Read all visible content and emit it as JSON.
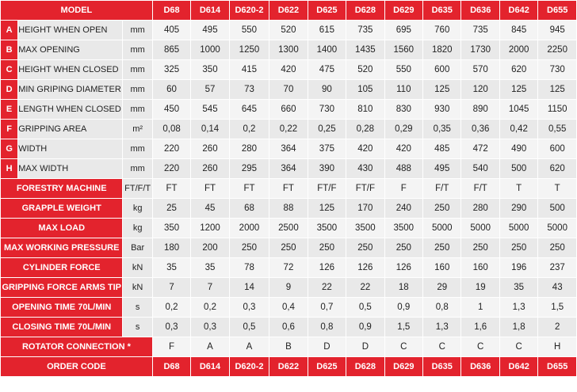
{
  "header": {
    "title": "MODEL",
    "models": [
      "D68",
      "D614",
      "D620-2",
      "D622",
      "D625",
      "D628",
      "D629",
      "D635",
      "D636",
      "D642",
      "D655"
    ]
  },
  "dimensions": [
    {
      "letter": "A",
      "label": "HEIGHT WHEN OPEN",
      "unit": "mm",
      "values": [
        "405",
        "495",
        "550",
        "520",
        "615",
        "735",
        "695",
        "760",
        "735",
        "845",
        "945"
      ]
    },
    {
      "letter": "B",
      "label": "MAX OPENING",
      "unit": "mm",
      "values": [
        "865",
        "1000",
        "1250",
        "1300",
        "1400",
        "1435",
        "1560",
        "1820",
        "1730",
        "2000",
        "2250"
      ]
    },
    {
      "letter": "C",
      "label": "HEIGHT WHEN CLOSED",
      "unit": "mm",
      "values": [
        "325",
        "350",
        "415",
        "420",
        "475",
        "520",
        "550",
        "600",
        "570",
        "620",
        "730"
      ]
    },
    {
      "letter": "D",
      "label": "MIN GRIPING DIAMETER",
      "unit": "mm",
      "values": [
        "60",
        "57",
        "73",
        "70",
        "90",
        "105",
        "110",
        "125",
        "120",
        "125",
        "125"
      ]
    },
    {
      "letter": "E",
      "label": "LENGTH WHEN CLOSED",
      "unit": "mm",
      "values": [
        "450",
        "545",
        "645",
        "660",
        "730",
        "810",
        "830",
        "930",
        "890",
        "1045",
        "1150"
      ]
    },
    {
      "letter": "F",
      "label": "GRIPPING AREA",
      "unit": "m²",
      "values": [
        "0,08",
        "0,14",
        "0,2",
        "0,22",
        "0,25",
        "0,28",
        "0,29",
        "0,35",
        "0,36",
        "0,42",
        "0,55"
      ]
    },
    {
      "letter": "G",
      "label": "WIDTH",
      "unit": "mm",
      "values": [
        "220",
        "260",
        "280",
        "364",
        "375",
        "420",
        "420",
        "485",
        "472",
        "490",
        "600"
      ]
    },
    {
      "letter": "H",
      "label": "MAX WIDTH",
      "unit": "mm",
      "values": [
        "220",
        "260",
        "295",
        "364",
        "390",
        "430",
        "488",
        "495",
        "540",
        "500",
        "620"
      ]
    }
  ],
  "specs": [
    {
      "label": "FORESTRY MACHINE",
      "unit": "FT/F/T",
      "values": [
        "FT",
        "FT",
        "FT",
        "FT",
        "FT/F",
        "FT/F",
        "F",
        "F/T",
        "F/T",
        "T",
        "T"
      ]
    },
    {
      "label": "GRAPPLE WEIGHT",
      "unit": "kg",
      "values": [
        "25",
        "45",
        "68",
        "88",
        "125",
        "170",
        "240",
        "250",
        "280",
        "290",
        "500"
      ]
    },
    {
      "label": "MAX LOAD",
      "unit": "kg",
      "values": [
        "350",
        "1200",
        "2000",
        "2500",
        "3500",
        "3500",
        "3500",
        "5000",
        "5000",
        "5000",
        "5000"
      ]
    },
    {
      "label": "MAX WORKING PRESSURE",
      "unit": "Bar",
      "values": [
        "180",
        "200",
        "250",
        "250",
        "250",
        "250",
        "250",
        "250",
        "250",
        "250",
        "250"
      ]
    },
    {
      "label": "CYLINDER FORCE",
      "unit": "kN",
      "values": [
        "35",
        "35",
        "78",
        "72",
        "126",
        "126",
        "126",
        "160",
        "160",
        "196",
        "237"
      ]
    },
    {
      "label": "GRIPPING FORCE ARMS TIP",
      "unit": "kN",
      "values": [
        "7",
        "7",
        "14",
        "9",
        "22",
        "22",
        "18",
        "29",
        "19",
        "35",
        "43"
      ]
    },
    {
      "label": "OPENING TIME 70L/MIN",
      "unit": "s",
      "values": [
        "0,2",
        "0,2",
        "0,3",
        "0,4",
        "0,7",
        "0,5",
        "0,9",
        "0,8",
        "1",
        "1,3",
        "1,5"
      ]
    },
    {
      "label": "CLOSING TIME 70L/MIN",
      "unit": "s",
      "values": [
        "0,3",
        "0,3",
        "0,5",
        "0,6",
        "0,8",
        "0,9",
        "1,5",
        "1,3",
        "1,6",
        "1,8",
        "2"
      ]
    }
  ],
  "rotator": {
    "label": "ROTATOR CONNECTION *",
    "values": [
      "F",
      "A",
      "A",
      "B",
      "D",
      "D",
      "C",
      "C",
      "C",
      "C",
      "H"
    ]
  },
  "footer": {
    "title": "ORDER CODE",
    "codes": [
      "D68",
      "D614",
      "D620-2",
      "D622",
      "D625",
      "D628",
      "D629",
      "D635",
      "D636",
      "D642",
      "D655"
    ]
  },
  "colors": {
    "accent": "#e3232d",
    "row_light": "#f4f4f4",
    "row_dark": "#e9e9e9"
  }
}
